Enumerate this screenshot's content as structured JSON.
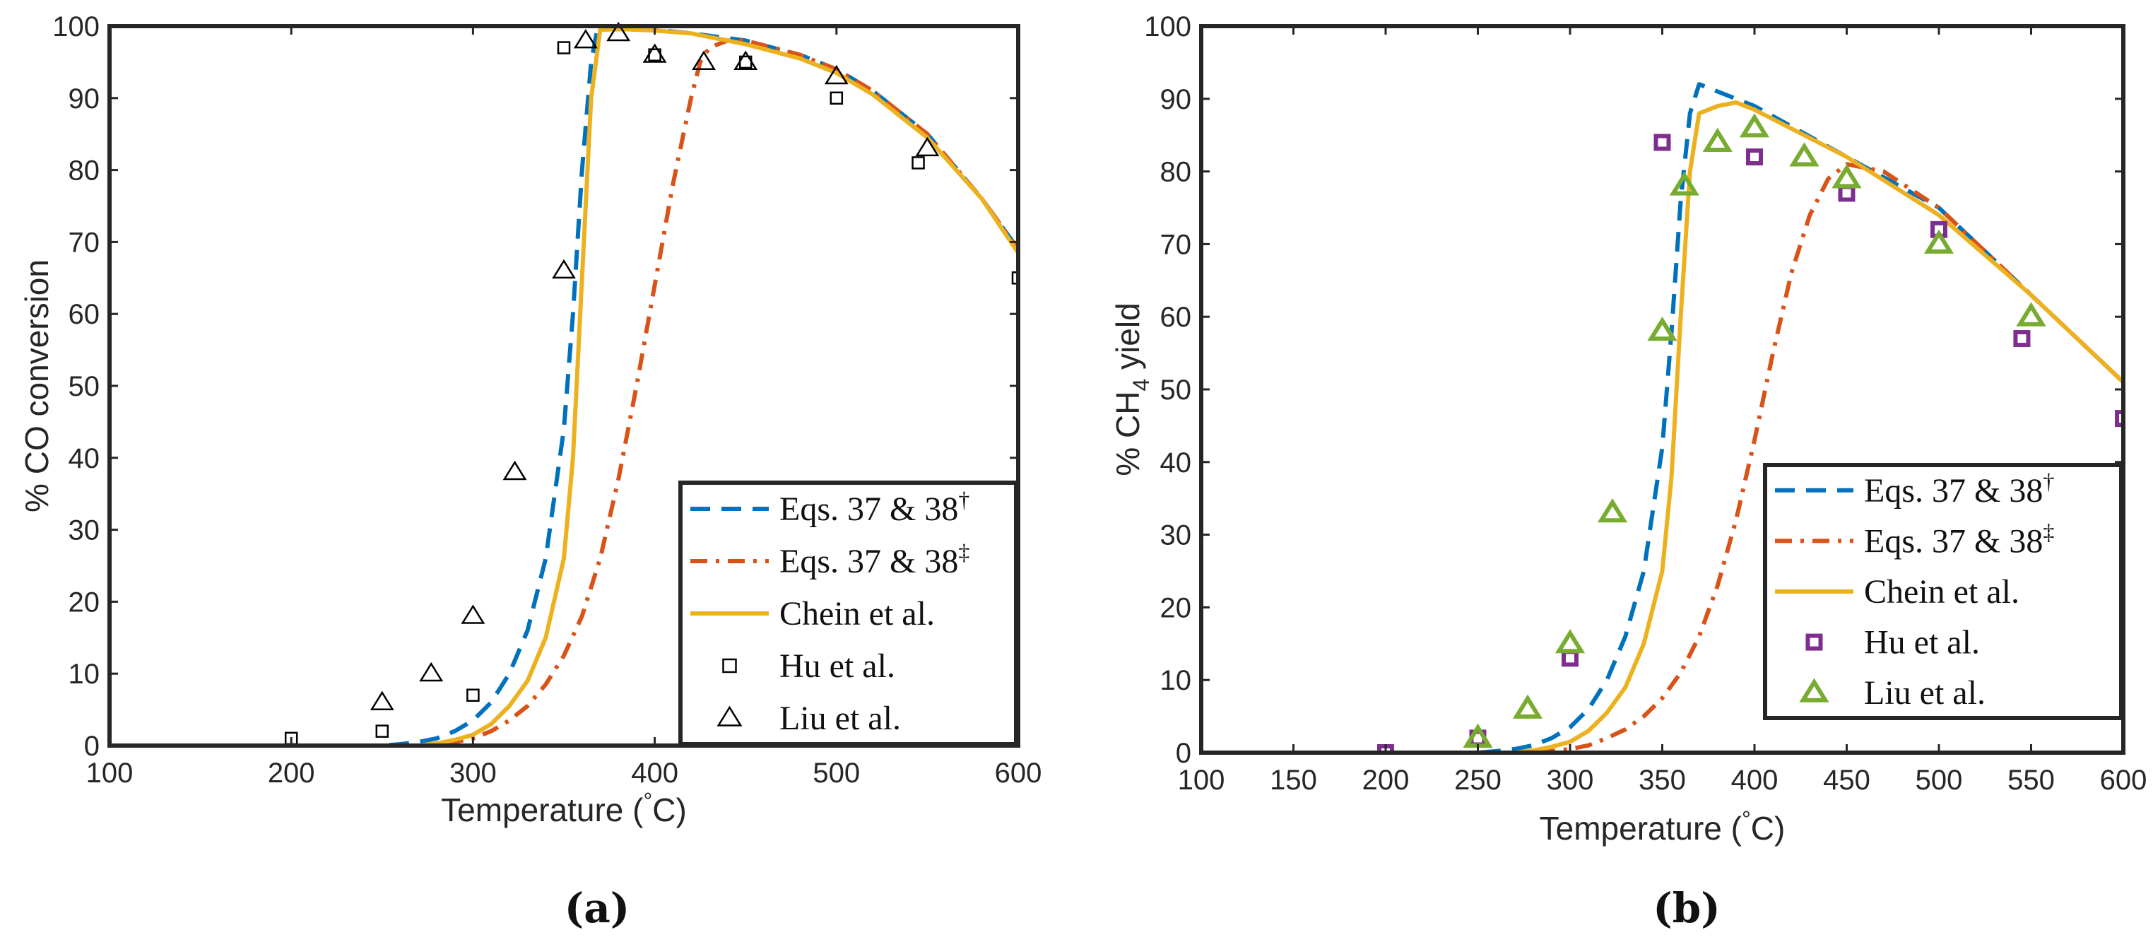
{
  "chart_data": [
    {
      "type": "line",
      "panel": "a",
      "caption": "(a)",
      "xlabel": "Temperature (°C)",
      "xlabel_parts": [
        "Temperature (",
        "°",
        "C)"
      ],
      "ylabel": "% CO conversion",
      "xlim": [
        100,
        600
      ],
      "ylim": [
        0,
        100
      ],
      "xticks": [
        100,
        200,
        300,
        400,
        500,
        600
      ],
      "yticks": [
        0,
        10,
        20,
        30,
        40,
        50,
        60,
        70,
        80,
        90,
        100
      ],
      "legend_position": "bottom-right",
      "series": [
        {
          "name": "Eqs. 37 & 38†",
          "label_main": "Eqs. 37 & 38",
          "label_sup": "†",
          "style": "dashed",
          "color": "#0072BD",
          "x": [
            100,
            250,
            260,
            270,
            280,
            290,
            300,
            310,
            320,
            330,
            340,
            350,
            355,
            360,
            365,
            368,
            370,
            380,
            400,
            420,
            450,
            480,
            500,
            520,
            550,
            580,
            600
          ],
          "y": [
            0,
            0,
            0.2,
            0.5,
            1,
            2,
            3.5,
            6,
            10,
            16,
            26,
            44,
            60,
            80,
            95,
            99,
            99.5,
            99.6,
            99.5,
            99,
            98,
            96,
            94,
            91,
            85,
            76,
            69
          ]
        },
        {
          "name": "Eqs. 37 & 38‡",
          "label_main": "Eqs. 37 & 38",
          "label_sup": "‡",
          "style": "dashdot",
          "color": "#D95319",
          "x": [
            100,
            270,
            280,
            290,
            300,
            310,
            320,
            330,
            340,
            350,
            360,
            370,
            380,
            390,
            400,
            410,
            420,
            425,
            430,
            440,
            450,
            480,
            500,
            520,
            550,
            580,
            600
          ],
          "y": [
            0,
            0,
            0.2,
            0.5,
            1,
            2,
            3.5,
            5.5,
            8.5,
            12.5,
            18,
            26,
            37,
            50,
            64,
            78,
            90,
            95,
            97,
            98,
            98,
            96,
            94,
            91,
            85,
            76,
            69
          ]
        },
        {
          "name": "Chein et al.",
          "label_main": "Chein et al.",
          "label_sup": "",
          "style": "solid",
          "color": "#EDB120",
          "x": [
            100,
            270,
            280,
            290,
            300,
            310,
            320,
            330,
            340,
            350,
            355,
            360,
            365,
            370,
            380,
            400,
            420,
            450,
            480,
            500,
            520,
            550,
            580,
            600
          ],
          "y": [
            0,
            0,
            0.3,
            0.8,
            1.5,
            3,
            5.5,
            9,
            15,
            26,
            40,
            65,
            90,
            99.5,
            99.6,
            99.4,
            99,
            97.5,
            95.5,
            93.5,
            90.5,
            84.5,
            76,
            68.5
          ]
        },
        {
          "name": "Hu et al.",
          "label_main": "Hu et al.",
          "label_sup": "",
          "style": "marker",
          "marker": "square",
          "color": "#000000",
          "x": [
            200,
            250,
            300,
            350,
            400,
            450,
            500,
            545,
            600
          ],
          "y": [
            1,
            2,
            7,
            97,
            96,
            95,
            90,
            81,
            65
          ]
        },
        {
          "name": "Liu et al.",
          "label_main": "Liu et al.",
          "label_sup": "",
          "style": "marker",
          "marker": "triangle",
          "color": "#000000",
          "x": [
            250,
            277,
            300,
            323,
            350,
            362,
            380,
            400,
            427,
            450,
            500,
            550
          ],
          "y": [
            6,
            10,
            18,
            38,
            66,
            98,
            99,
            96,
            95,
            95,
            93,
            83
          ]
        }
      ]
    },
    {
      "type": "line",
      "panel": "b",
      "caption": "(b)",
      "xlabel": "Temperature (°C)",
      "xlabel_parts": [
        "Temperature (",
        "°",
        "C)"
      ],
      "ylabel": "% CH4 yield",
      "ylabel_parts": [
        "% CH",
        "4",
        " yield"
      ],
      "xlim": [
        100,
        600
      ],
      "ylim": [
        0,
        100
      ],
      "xticks": [
        100,
        150,
        200,
        250,
        300,
        350,
        400,
        450,
        500,
        550,
        600
      ],
      "yticks": [
        0,
        10,
        20,
        30,
        40,
        50,
        60,
        70,
        80,
        90,
        100
      ],
      "legend_position": "bottom-right",
      "series": [
        {
          "name": "Eqs. 37 & 38†",
          "label_main": "Eqs. 37 & 38",
          "label_sup": "†",
          "style": "dashed",
          "color": "#0072BD",
          "x": [
            100,
            250,
            260,
            270,
            280,
            290,
            300,
            310,
            320,
            330,
            340,
            350,
            355,
            360,
            365,
            370,
            380,
            400,
            450,
            500,
            550,
            600
          ],
          "y": [
            0,
            0,
            0.2,
            0.5,
            1,
            2,
            3.5,
            6,
            10,
            16,
            25,
            42,
            58,
            76,
            88,
            92,
            91,
            89,
            82,
            75,
            63,
            51
          ]
        },
        {
          "name": "Eqs. 37 & 38‡",
          "label_main": "Eqs. 37 & 38",
          "label_sup": "‡",
          "style": "dashdot",
          "color": "#D95319",
          "x": [
            100,
            280,
            290,
            300,
            310,
            320,
            330,
            340,
            350,
            360,
            370,
            380,
            390,
            400,
            410,
            420,
            430,
            440,
            450,
            470,
            500,
            550,
            600
          ],
          "y": [
            0,
            0,
            0.2,
            0.5,
            1,
            2,
            3.2,
            5,
            7.5,
            11,
            16,
            23,
            32,
            43,
            55,
            66,
            74,
            79,
            81,
            80,
            75,
            63,
            51
          ]
        },
        {
          "name": "Chein et al.",
          "label_main": "Chein et al.",
          "label_sup": "",
          "style": "solid",
          "color": "#EDB120",
          "x": [
            100,
            270,
            280,
            290,
            300,
            310,
            320,
            330,
            340,
            350,
            355,
            360,
            365,
            370,
            380,
            390,
            400,
            450,
            500,
            550,
            600
          ],
          "y": [
            0,
            0,
            0.3,
            0.8,
            1.5,
            3,
            5.5,
            9,
            15,
            25,
            38,
            60,
            80,
            88,
            89,
            89.5,
            88.5,
            82,
            74,
            63,
            51
          ]
        },
        {
          "name": "Hu et al.",
          "label_main": "Hu et al.",
          "label_sup": "",
          "style": "marker",
          "marker": "square",
          "color": "#7E2F8E",
          "x": [
            200,
            250,
            300,
            350,
            400,
            450,
            500,
            545,
            600
          ],
          "y": [
            0,
            2,
            13,
            84,
            82,
            77,
            72,
            57,
            46
          ]
        },
        {
          "name": "Liu et al.",
          "label_main": "Liu et al.",
          "label_sup": "",
          "style": "marker",
          "marker": "triangle",
          "color": "#77AC30",
          "x": [
            250,
            277,
            300,
            323,
            350,
            362,
            380,
            400,
            427,
            450,
            500,
            550
          ],
          "y": [
            2,
            6,
            15,
            33,
            58,
            78,
            84,
            86,
            82,
            79,
            70,
            60
          ]
        }
      ]
    }
  ]
}
